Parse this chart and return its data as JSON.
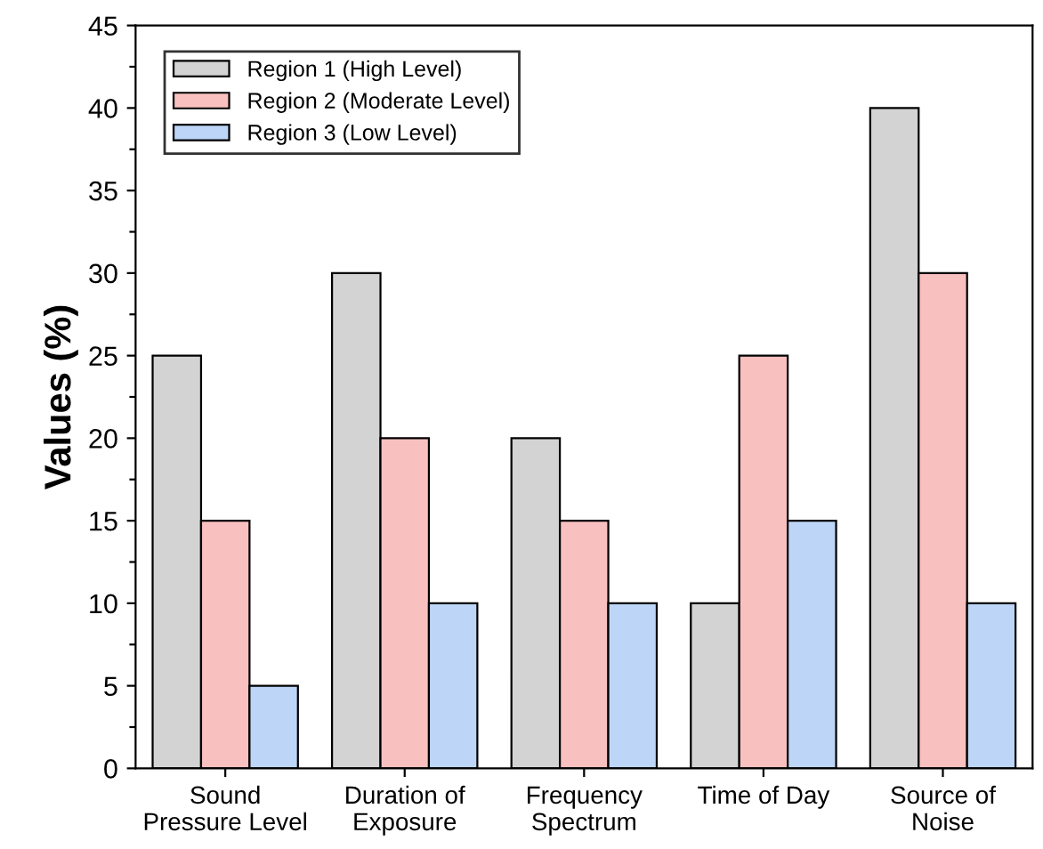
{
  "chart_data": {
    "type": "bar",
    "ylabel": "Values (%)",
    "categories": [
      "Sound\nPressure Level",
      "Duration of\nExposure",
      "Frequency\nSpectrum",
      "Time of Day",
      "Source of\nNoise"
    ],
    "series": [
      {
        "name": "Region 1 (High Level)",
        "color": "#d3d3d3",
        "values": [
          25,
          30,
          20,
          10,
          40
        ]
      },
      {
        "name": "Region 2 (Moderate Level)",
        "color": "#f9c0c0",
        "values": [
          15,
          20,
          15,
          25,
          30
        ]
      },
      {
        "name": "Region 3 (Low Level)",
        "color": "#bdd5f6",
        "values": [
          5,
          10,
          10,
          15,
          10
        ]
      }
    ],
    "ylim": [
      0,
      45
    ],
    "yticks": [
      0,
      {
        "value": 2.5,
        "label": null
      },
      5,
      {
        "value": 7.5,
        "label": null
      },
      10,
      {
        "value": 12.5,
        "label": null
      },
      15,
      {
        "value": 17.5,
        "label": null
      },
      20,
      {
        "value": 22.5,
        "label": null
      },
      25,
      {
        "value": 27.5,
        "label": null
      },
      30,
      {
        "value": 32.5,
        "label": null
      },
      35,
      {
        "value": 37.5,
        "label": null
      },
      40,
      {
        "value": 42.5,
        "label": null
      },
      45
    ],
    "grid": false,
    "legend": "top left"
  }
}
